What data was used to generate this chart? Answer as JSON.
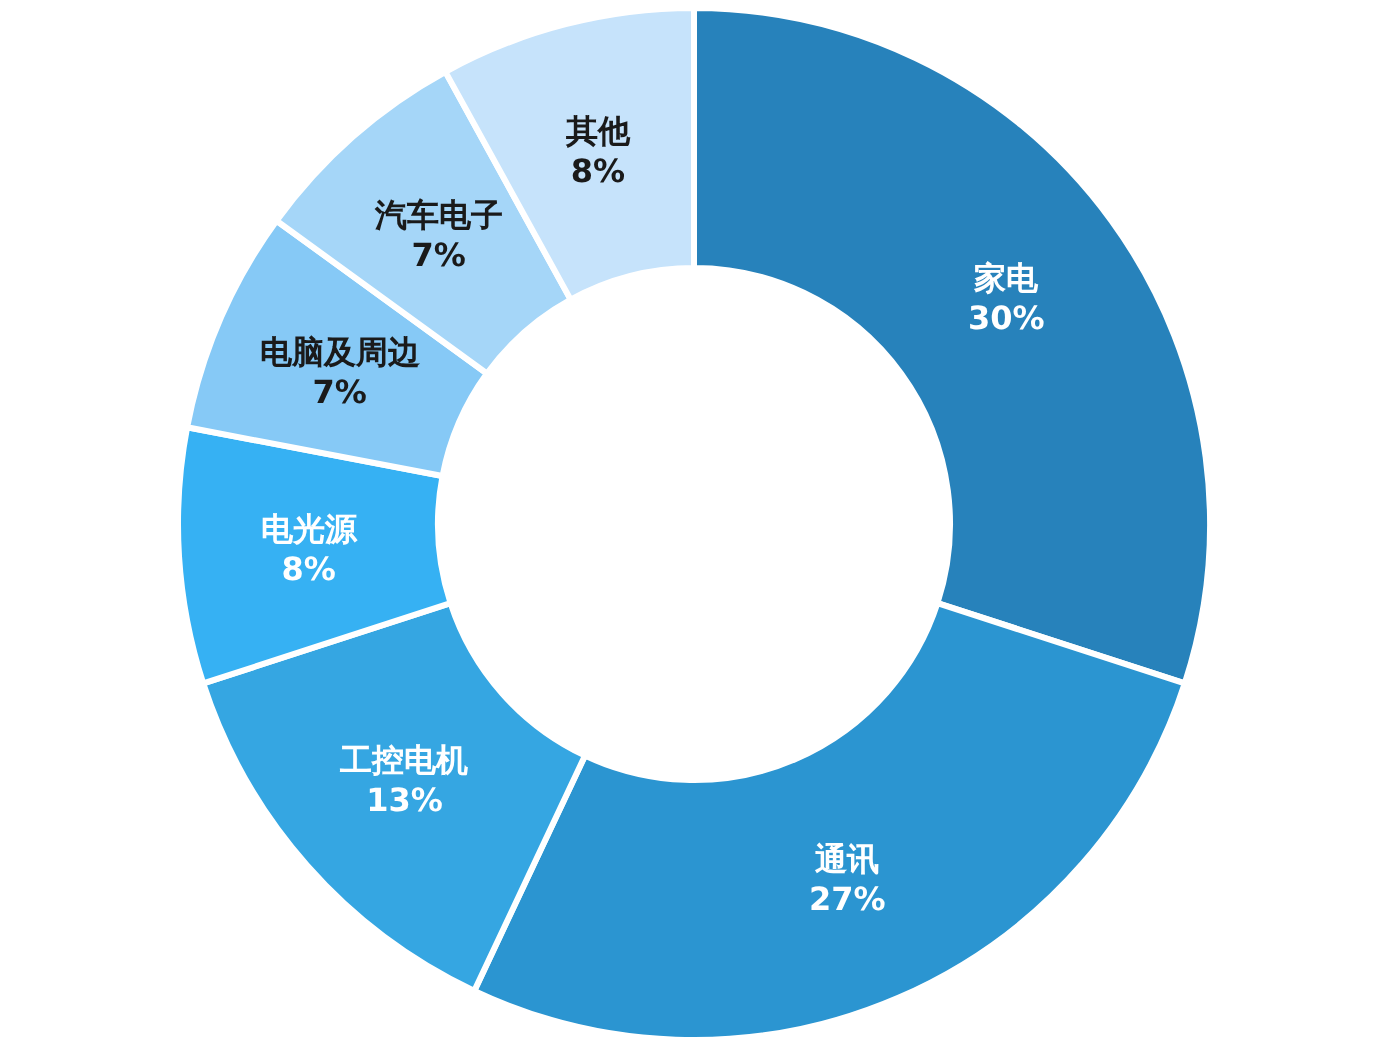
{
  "chart_data": {
    "type": "donut",
    "categories": [
      "家电",
      "通讯",
      "工控电机",
      "电光源",
      "电脑及周边",
      "汽车电子",
      "其他"
    ],
    "values": [
      30,
      27,
      13,
      8,
      7,
      7,
      8
    ],
    "value_labels": [
      "30%",
      "27%",
      "13%",
      "8%",
      "7%",
      "7%",
      "8%"
    ],
    "colors": [
      "#2782bb",
      "#2b95d1",
      "#35a6e2",
      "#36b1f3",
      "#86c9f6",
      "#a5d6f8",
      "#c6e3fb"
    ]
  }
}
